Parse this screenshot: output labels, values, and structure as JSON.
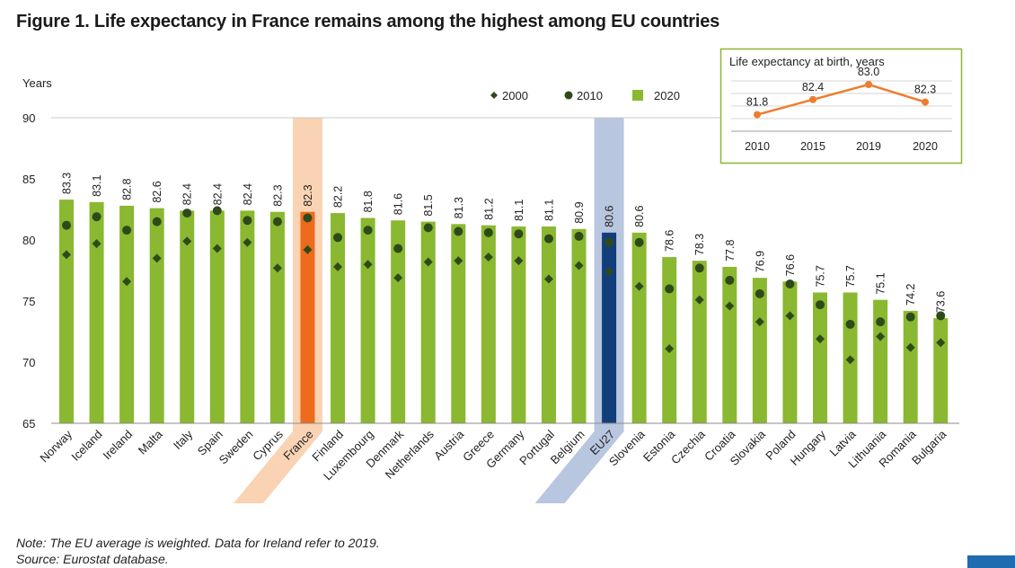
{
  "title": "Figure 1. Life expectancy in France remains among the highest among EU countries",
  "notes": {
    "line1": "Note: The EU average is weighted. Data for Ireland refer to 2019.",
    "line2": "Source: Eurostat database."
  },
  "colors": {
    "bar": "#8ab830",
    "france": "#ee6a1c",
    "eu": "#123f7a",
    "france_band": "#f9d3b4",
    "eu_band": "#b9c6df",
    "marker": "#2f4a1a",
    "inset_line": "#ee7d2e",
    "inset_border": "#8ab830"
  },
  "chart_data": [
    {
      "type": "bar",
      "title": "",
      "ylabel": "Years",
      "ylim": [
        65,
        90
      ],
      "yticks": [
        65,
        70,
        75,
        80,
        85,
        90
      ],
      "highlight": {
        "France": "france",
        "EU27": "eu"
      },
      "categories": [
        "Norway",
        "Iceland",
        "Ireland",
        "Malta",
        "Italy",
        "Spain",
        "Sweden",
        "Cyprus",
        "France",
        "Finland",
        "Luxembourg",
        "Denmark",
        "Netherlands",
        "Austria",
        "Greece",
        "Germany",
        "Portugal",
        "Belgium",
        "EU27",
        "Slovenia",
        "Estonia",
        "Czechia",
        "Croatia",
        "Slovakia",
        "Poland",
        "Hungary",
        "Latvia",
        "Lithuania",
        "Romania",
        "Bulgaria"
      ],
      "series": [
        {
          "name": "2020",
          "kind": "bar",
          "labels": [
            "83.3",
            "83.1",
            "82.8",
            "82.6",
            "82.4",
            "82.4",
            "82.4",
            "82.3",
            "82.3",
            "82.2",
            "81.8",
            "81.6",
            "81.5",
            "81.3",
            "81.2",
            "81.1",
            "81.1",
            "80.9",
            "80.6",
            "80.6",
            "78.6",
            "78.3",
            "77.8",
            "76.9",
            "76.6",
            "75.7",
            "75.7",
            "75.1",
            "74.2",
            "73.6"
          ],
          "values": [
            83.3,
            83.1,
            82.8,
            82.6,
            82.4,
            82.4,
            82.4,
            82.3,
            82.3,
            82.2,
            81.8,
            81.6,
            81.5,
            81.3,
            81.2,
            81.1,
            81.1,
            80.9,
            80.6,
            80.6,
            78.6,
            78.3,
            77.8,
            76.9,
            76.6,
            75.7,
            75.7,
            75.1,
            74.2,
            73.6
          ]
        },
        {
          "name": "2010",
          "kind": "circle",
          "values": [
            81.2,
            81.9,
            80.8,
            81.5,
            82.2,
            82.4,
            81.6,
            81.5,
            81.8,
            80.2,
            80.8,
            79.3,
            81.0,
            80.7,
            80.6,
            80.5,
            80.1,
            80.3,
            79.8,
            79.8,
            76.0,
            77.7,
            76.7,
            75.6,
            76.4,
            74.7,
            73.1,
            73.3,
            73.7,
            73.8
          ]
        },
        {
          "name": "2000",
          "kind": "diamond",
          "values": [
            78.8,
            79.7,
            76.6,
            78.5,
            79.9,
            79.3,
            79.8,
            77.7,
            79.2,
            77.8,
            78.0,
            76.9,
            78.2,
            78.3,
            78.6,
            78.3,
            76.8,
            77.9,
            77.4,
            76.2,
            71.1,
            75.1,
            74.6,
            73.3,
            73.8,
            71.9,
            70.2,
            72.1,
            71.2,
            71.6
          ]
        }
      ],
      "legend": [
        "2000",
        "2010",
        "2020"
      ],
      "legend_position": "top-right"
    },
    {
      "type": "line",
      "title": "Life expectancy at birth, years",
      "x": [
        "2010",
        "2015",
        "2019",
        "2020"
      ],
      "values": [
        81.8,
        82.4,
        83.0,
        82.3
      ],
      "labels": [
        "81.8",
        "82.4",
        "83.0",
        "82.3"
      ],
      "ylim": [
        81.0,
        83.5
      ],
      "position": "top-right"
    }
  ]
}
